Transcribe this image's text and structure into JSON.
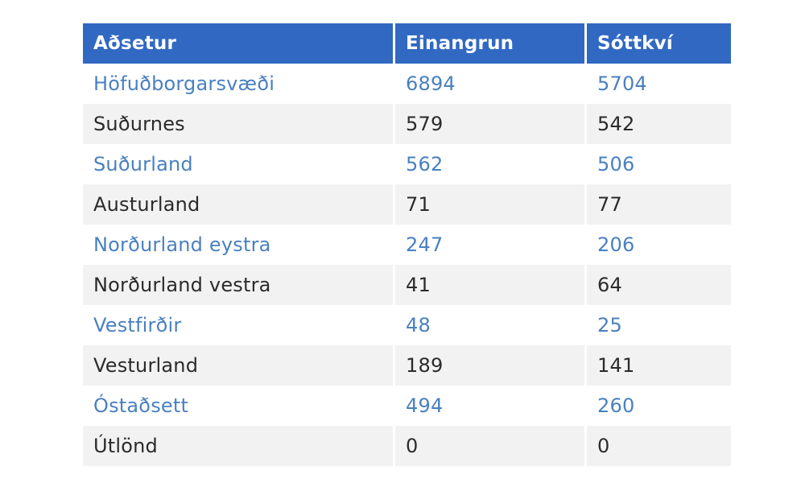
{
  "table": {
    "headers": [
      "Aðsetur",
      "Einangrun",
      "Sóttkví"
    ],
    "rows": [
      [
        "Höfuðborgarsvæði",
        "6894",
        "5704"
      ],
      [
        "Suðurnes",
        "579",
        "542"
      ],
      [
        "Suðurland",
        "562",
        "506"
      ],
      [
        "Austurland",
        "71",
        "77"
      ],
      [
        "Norðurland eystra",
        "247",
        "206"
      ],
      [
        "Norðurland vestra",
        "41",
        "64"
      ],
      [
        "Vestfirðir",
        "48",
        "25"
      ],
      [
        "Vesturland",
        "189",
        "141"
      ],
      [
        "Óstaðsett",
        "494",
        "260"
      ],
      [
        "Útlönd",
        "0",
        "0"
      ]
    ]
  },
  "colors": {
    "header_background": "#3169c2",
    "header_text": "#ffffff",
    "odd_row_text": "#4a80c0",
    "even_row_text": "#2b2b2b",
    "even_row_background": "#f2f2f2"
  }
}
